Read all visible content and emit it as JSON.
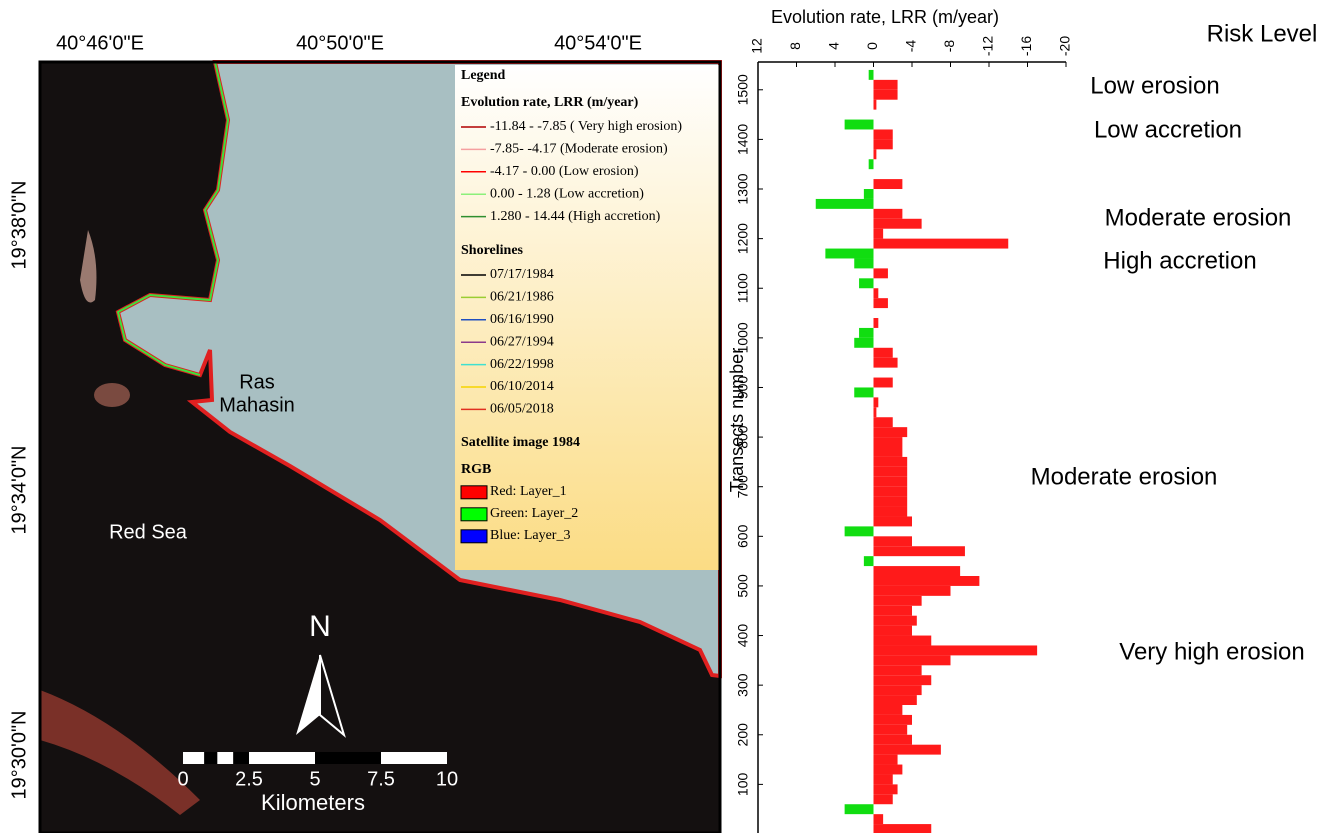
{
  "map": {
    "lon_labels": [
      "40°46'0\"E",
      "40°50'0\"E",
      "40°54'0\"E"
    ],
    "lat_labels": [
      "19°38'0\"N",
      "19°34'0\"N",
      "19°30'0\"N"
    ],
    "places": [
      "Red Sea",
      "Ras",
      "Mahasin"
    ],
    "north": "N",
    "scale_bar": {
      "ticks": [
        0,
        2.5,
        5,
        7.5,
        10
      ],
      "unit": "Kilometers"
    },
    "legend": {
      "title": "Legend",
      "lrr_title": "Evolution rate, LRR (m/year)",
      "lrr_items": [
        {
          "label": "-11.84 - -7.85 ( Very high erosion)",
          "color": "#b00000"
        },
        {
          "label": "-7.85- -4.17 (Moderate erosion)",
          "color": "#f5a0a0"
        },
        {
          "label": "-4.17 - 0.00 (Low erosion)",
          "color": "#ff0000"
        },
        {
          "label": "0.00 - 1.28 (Low accretion)",
          "color": "#8cf07a"
        },
        {
          "label": "1.280 - 14.44 (High accretion)",
          "color": "#2f8f2f"
        }
      ],
      "shore_title": "Shorelines",
      "shore_items": [
        {
          "label": "07/17/1984",
          "color": "#000000"
        },
        {
          "label": "06/21/1986",
          "color": "#9acd32"
        },
        {
          "label": "06/16/1990",
          "color": "#1f4fbf"
        },
        {
          "label": "06/27/1994",
          "color": "#8b3a8b"
        },
        {
          "label": "06/22/1998",
          "color": "#40e0d0"
        },
        {
          "label": "06/10/2014",
          "color": "#f5d400"
        },
        {
          "label": "06/05/2018",
          "color": "#e03020"
        }
      ],
      "image_title": "Satellite image 1984",
      "rgb_title": "RGB",
      "rgb_items": [
        {
          "label": "Red:   Layer_1",
          "color": "#ff0000"
        },
        {
          "label": "Green: Layer_2",
          "color": "#00ff00"
        },
        {
          "label": "Blue:  Layer_3",
          "color": "#0000ff"
        }
      ]
    }
  },
  "chart_data": {
    "type": "bar",
    "title": "Evolution rate, LRR (m/year)",
    "y_label": "Transects number",
    "risk_title": "Risk Level",
    "annotations": [
      "Low erosion",
      "Low accretion",
      "Moderate erosion",
      "High accretion",
      "Moderate erosion",
      "Very high erosion"
    ],
    "xlim": [
      12,
      -20
    ],
    "xticks": [
      12,
      8,
      4,
      0,
      -4,
      -8,
      -12,
      -16,
      -20
    ],
    "ylim": [
      0,
      1556
    ],
    "yticks": [
      100,
      200,
      300,
      400,
      500,
      600,
      700,
      800,
      900,
      1000,
      1100,
      1200,
      1300,
      1400,
      1500
    ],
    "negative_color": "#ff1a1a",
    "positive_color": "#11dd11",
    "y": [
      10,
      30,
      50,
      70,
      90,
      110,
      130,
      150,
      170,
      190,
      210,
      230,
      250,
      270,
      290,
      310,
      330,
      350,
      370,
      390,
      410,
      430,
      450,
      470,
      490,
      510,
      530,
      550,
      570,
      590,
      610,
      630,
      650,
      670,
      690,
      710,
      730,
      750,
      770,
      790,
      810,
      830,
      850,
      870,
      890,
      910,
      930,
      950,
      970,
      990,
      1010,
      1030,
      1050,
      1070,
      1090,
      1110,
      1130,
      1150,
      1170,
      1190,
      1210,
      1230,
      1250,
      1270,
      1290,
      1310,
      1330,
      1350,
      1370,
      1390,
      1410,
      1430,
      1450,
      1470,
      1490,
      1510,
      1530
    ],
    "values": [
      -6,
      -1,
      3,
      -2,
      -2.5,
      -2,
      -3,
      -2.5,
      -7,
      -4,
      -3.5,
      -4,
      -3,
      -4.5,
      -5,
      -6,
      -5,
      -8,
      -17,
      -6,
      -4,
      -4.5,
      -4,
      -5,
      -8,
      -11,
      -9,
      1,
      -9.5,
      -4,
      3,
      -4,
      -3.5,
      -3.5,
      -3.5,
      -3.5,
      -3.5,
      -3.5,
      -3,
      -3,
      -3.5,
      -2,
      -0.3,
      -0.5,
      2,
      -2,
      0,
      -2.5,
      -2,
      2,
      1.5,
      -0.5,
      0,
      -1.5,
      -0.5,
      1.5,
      -1.5,
      2,
      5,
      -14,
      -1,
      -5,
      -3,
      6,
      1,
      -3,
      0,
      0.5,
      -0.3,
      -2,
      -2,
      3,
      0,
      -0.3,
      -2.5,
      -2.5,
      0.5
    ]
  }
}
